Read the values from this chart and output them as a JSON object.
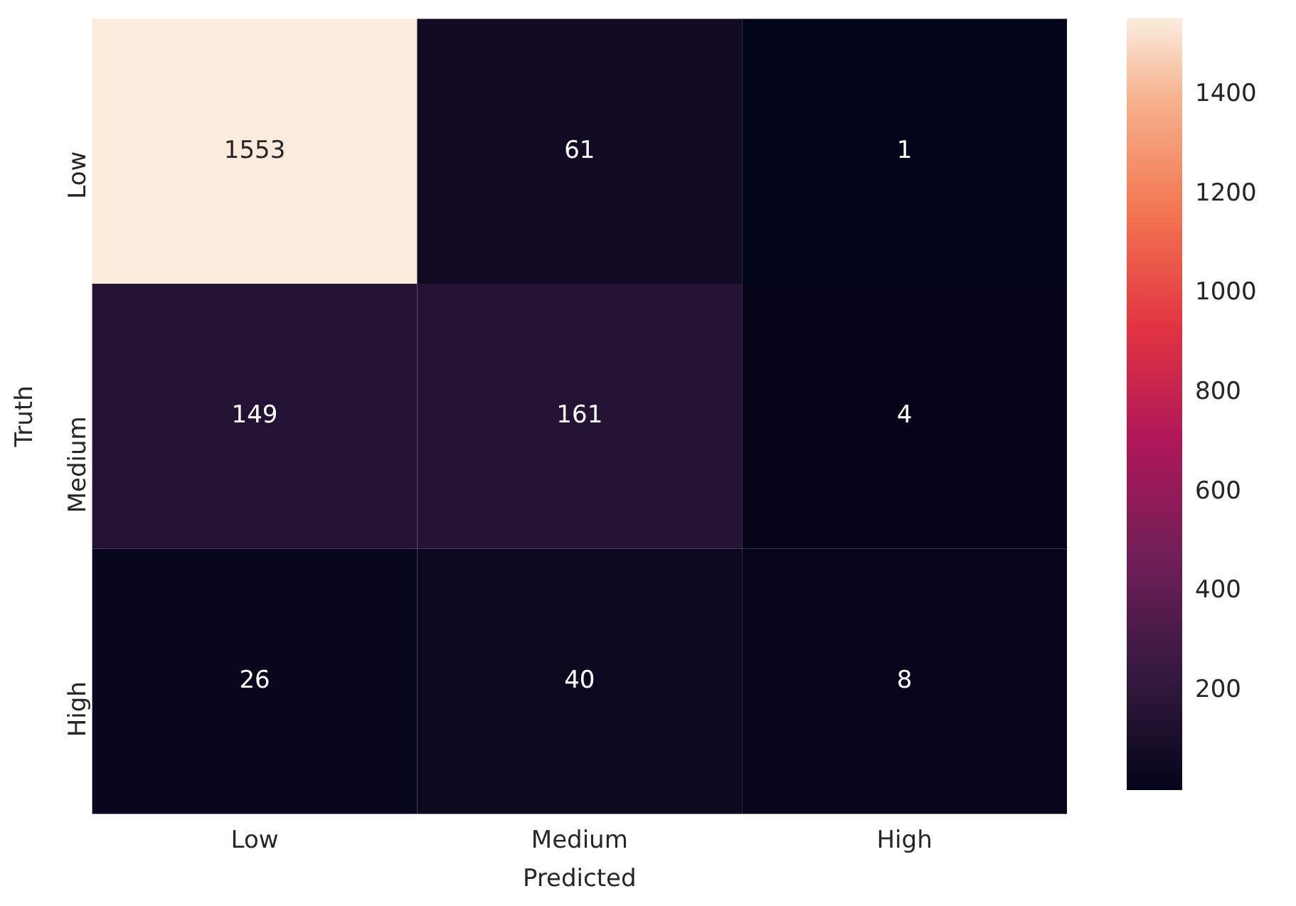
{
  "chart_data": {
    "type": "heatmap",
    "xlabel": "Predicted",
    "ylabel": "Truth",
    "categories": [
      "Low",
      "Medium",
      "High"
    ],
    "y_categories": [
      "Low",
      "Medium",
      "High"
    ],
    "cells": [
      [
        1553,
        61,
        1
      ],
      [
        149,
        161,
        4
      ],
      [
        26,
        40,
        8
      ]
    ],
    "data_labels": true,
    "clim": [
      1,
      1553
    ],
    "cticks": [
      200,
      400,
      600,
      800,
      1000,
      1200,
      1400
    ]
  }
}
